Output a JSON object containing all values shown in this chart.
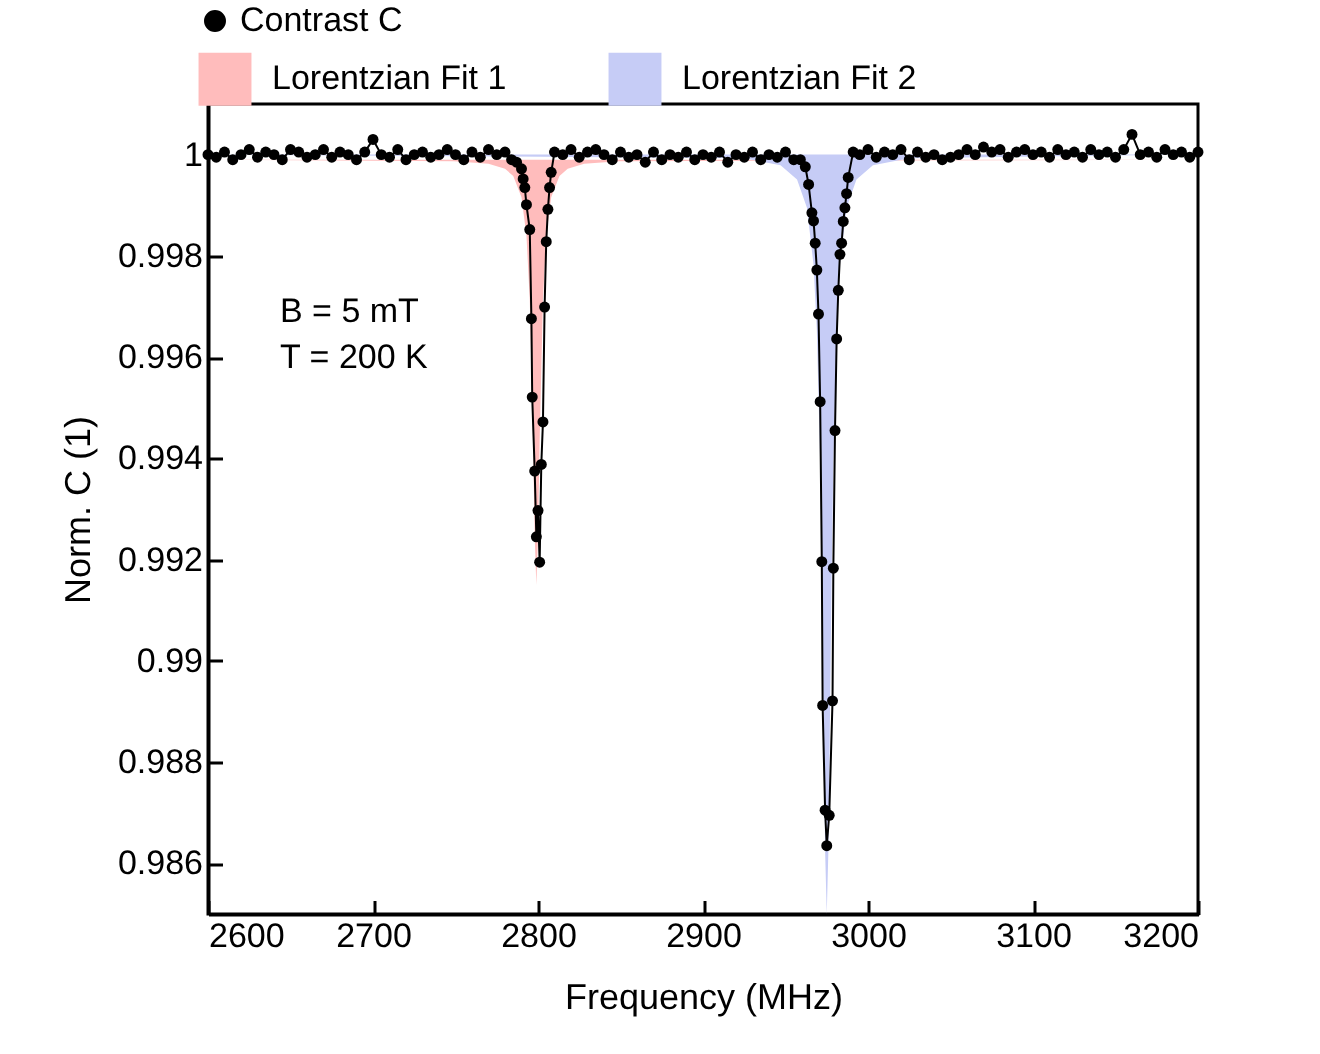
{
  "chart_data": {
    "type": "line",
    "xlabel": "Frequency (MHz)",
    "ylabel": "Norm. C (1)",
    "annotations": [
      "B = 5 mT",
      "T = 200 K"
    ],
    "xlim": [
      2600,
      3200
    ],
    "xticks": [
      2600,
      2700,
      2800,
      2900,
      3000,
      3100,
      3200
    ],
    "ylim": [
      0.985,
      1.001
    ],
    "yticks": [
      0.986,
      0.988,
      0.99,
      0.992,
      0.994,
      0.996,
      0.998,
      1
    ],
    "legend": "top left",
    "series": [
      {
        "name": "Lorentzian Fit 1",
        "type": "area",
        "color": "#ffbcbc",
        "x": [
          2600,
          2749,
          2770,
          2780,
          2785,
          2790,
          2793,
          2795,
          2797,
          2798,
          2799,
          2800,
          2801,
          2803,
          2805,
          2808,
          2813,
          2818,
          2828,
          2849,
          3200
        ],
        "values": [
          0.9999,
          0.99987,
          0.99982,
          0.99972,
          0.99958,
          0.99916,
          0.9984,
          0.99714,
          0.99434,
          0.99245,
          0.9915,
          0.99245,
          0.99434,
          0.99714,
          0.9984,
          0.99916,
          0.99958,
          0.99972,
          0.99982,
          0.99987,
          0.9999
        ]
      },
      {
        "name": "Lorentzian Fit 2",
        "type": "area",
        "color": "#c6ccf6",
        "x": [
          2600,
          2925,
          2947,
          2957,
          2963,
          2967,
          2969,
          2971,
          2972,
          2973,
          2974,
          2975,
          2976,
          2977,
          2978,
          2979,
          2981,
          2983,
          2987,
          2993,
          3003,
          3025,
          3200
        ],
        "values": [
          1,
          0.99993,
          0.99979,
          0.99951,
          0.99895,
          0.99782,
          0.99652,
          0.99393,
          0.99179,
          0.98903,
          0.98626,
          0.985,
          0.98626,
          0.98903,
          0.99179,
          0.99393,
          0.99652,
          0.99782,
          0.99895,
          0.99951,
          0.99979,
          0.99993,
          1
        ]
      },
      {
        "name": "Contrast C",
        "type": "line",
        "color": "#000000",
        "marker": "circle",
        "line_style": "solid",
        "x": [
          2600,
          2605,
          2610,
          2615,
          2620,
          2625,
          2630,
          2635,
          2640,
          2645,
          2650,
          2655,
          2660,
          2665,
          2670,
          2675,
          2680,
          2685,
          2690,
          2695,
          2700,
          2705,
          2710,
          2715,
          2720,
          2725,
          2730,
          2735,
          2740,
          2745,
          2750,
          2755,
          2760,
          2765,
          2770,
          2775,
          2780,
          2784,
          2787,
          2790,
          2791,
          2792,
          2793,
          2795,
          2796,
          2796.5,
          2798,
          2799,
          2800,
          2801,
          2802,
          2803,
          2804,
          2805,
          2806,
          2807,
          2808,
          2810,
          2815,
          2820,
          2825,
          2830,
          2835,
          2840,
          2845,
          2850,
          2855,
          2860,
          2865,
          2870,
          2875,
          2880,
          2885,
          2890,
          2895,
          2900,
          2905,
          2910,
          2915,
          2920,
          2925,
          2930,
          2935,
          2940,
          2945,
          2950,
          2955,
          2959,
          2962,
          2964,
          2966,
          2967,
          2968,
          2969,
          2970,
          2971,
          2972,
          2972.5,
          2974,
          2975,
          2976.5,
          2978.5,
          2979,
          2980,
          2981,
          2982,
          2983,
          2984,
          2985,
          2986,
          2987,
          2988,
          2991,
          2995,
          3000,
          3005,
          3010,
          3015,
          3020,
          3025,
          3030,
          3035,
          3040,
          3045,
          3050,
          3055,
          3060,
          3065,
          3070,
          3075,
          3080,
          3085,
          3090,
          3095,
          3100,
          3105,
          3110,
          3115,
          3120,
          3125,
          3130,
          3135,
          3140,
          3145,
          3150,
          3155,
          3160,
          3165,
          3170,
          3175,
          3180,
          3185,
          3190,
          3195,
          3200
        ],
        "values": [
          1,
          0.99995,
          1.00005,
          0.9999,
          1,
          1.0001,
          0.99995,
          1.00005,
          1,
          0.9999,
          1.0001,
          1.00005,
          0.99995,
          1,
          1.0001,
          0.99995,
          1.00005,
          1,
          0.9999,
          1.00005,
          1.0003,
          1,
          0.99995,
          1.0001,
          0.9999,
          1,
          1.00005,
          0.99995,
          1,
          1.0001,
          1,
          0.9999,
          1.00005,
          0.99995,
          1.0001,
          1,
          1.00005,
          0.9999,
          0.99985,
          0.99972,
          0.99952,
          0.99935,
          0.99901,
          0.99852,
          0.99676,
          0.99521,
          0.99375,
          0.99245,
          0.99297,
          0.99195,
          0.99388,
          0.99472,
          0.99699,
          0.99828,
          0.99892,
          0.99935,
          0.99965,
          1.00005,
          1,
          1.0001,
          0.99995,
          1.00005,
          1.0001,
          1,
          0.9999,
          1.00005,
          0.99995,
          1,
          0.99985,
          1.00005,
          0.9999,
          1,
          0.99995,
          1.00005,
          0.9999,
          1,
          0.99995,
          1.00005,
          0.99985,
          1,
          0.99995,
          1.00005,
          0.9999,
          1,
          0.99995,
          1.00005,
          0.9999,
          0.9999,
          0.99976,
          0.99941,
          0.99885,
          0.99869,
          0.99825,
          0.99772,
          0.99685,
          0.99512,
          0.99196,
          0.98912,
          0.98705,
          0.98635,
          0.98695,
          0.98921,
          0.99183,
          0.99455,
          0.99636,
          0.99732,
          0.99803,
          0.99825,
          0.99868,
          0.99895,
          0.99923,
          0.99955,
          1.00005,
          1,
          1.0001,
          0.99995,
          1.00005,
          1,
          1.0001,
          0.9999,
          1.00005,
          0.99995,
          1,
          0.9999,
          0.99995,
          1,
          1.0001,
          1,
          1.00015,
          1.00005,
          1.0001,
          0.99995,
          1.00005,
          1.0001,
          1,
          1.00005,
          0.99995,
          1.0001,
          1,
          1.00005,
          0.99995,
          1.0001,
          1,
          1.00005,
          0.99995,
          1.0001,
          1.0004,
          1,
          1.00005,
          0.99995,
          1.0001,
          1,
          1.00005,
          0.99995,
          1.00005
        ]
      }
    ]
  }
}
